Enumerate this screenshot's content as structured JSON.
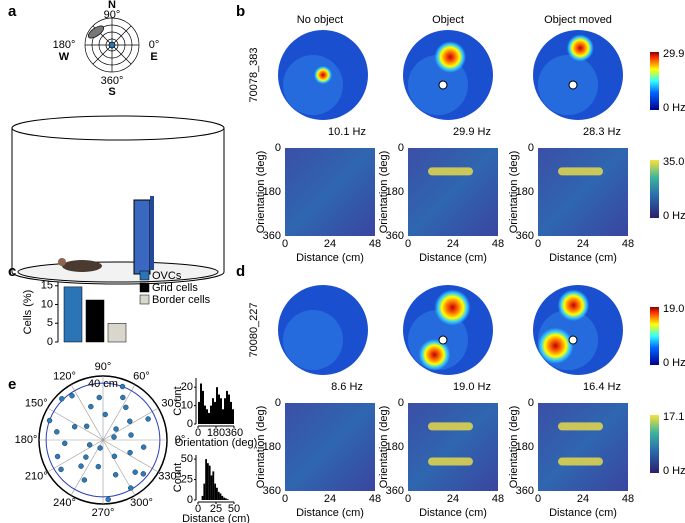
{
  "panel_labels": [
    "a",
    "b",
    "c",
    "d",
    "e"
  ],
  "compass": {
    "north": "N",
    "south": "S",
    "west": "W",
    "east": "E",
    "deg_top": "90°",
    "deg_left": "180°",
    "deg_right": "0°",
    "deg_bottom": "360°"
  },
  "conditions": [
    "No object",
    "Object",
    "Object moved"
  ],
  "rate_maps": [
    {
      "cell": "70078_383",
      "peak_rates": [
        "10.1 Hz",
        "29.9 Hz",
        "28.3 Hz"
      ],
      "colorbar": [
        "29.9",
        "0 Hz"
      ],
      "ovc_colorbar": [
        "35.0",
        "0 Hz"
      ],
      "y_label": "Orientation (deg)",
      "x_label": "Distance (cm)",
      "yticks": [
        "0",
        "180",
        "360"
      ],
      "xticks": [
        "0",
        "24",
        "48"
      ]
    },
    {
      "cell": "70080_227",
      "peak_rates": [
        "8.6 Hz",
        "19.0 Hz",
        "16.4 Hz"
      ],
      "colorbar": [
        "19.0",
        "0 Hz"
      ],
      "ovc_colorbar": [
        "17.1",
        "0 Hz"
      ],
      "y_label": "Orientation (deg)",
      "x_label": "Distance (cm)",
      "yticks": [
        "0",
        "180",
        "360"
      ],
      "xticks": [
        "0",
        "24",
        "48"
      ]
    }
  ],
  "chart_data": [
    {
      "type": "bar",
      "categories": [
        "OVCs",
        "Grid cells",
        "Border cells"
      ],
      "values": [
        14.7,
        11.2,
        5.0
      ],
      "colors": [
        "#2b74b5",
        "#000000",
        "#d9d6cc"
      ],
      "ylabel": "Cells (%)",
      "ylim": [
        0,
        16
      ],
      "yticks": [
        0,
        5,
        10,
        15
      ]
    },
    {
      "type": "polar_scatter",
      "theta": [
        10,
        25,
        40,
        55,
        70,
        85,
        95,
        110,
        125,
        140,
        155,
        170,
        185,
        200,
        215,
        230,
        245,
        260,
        275,
        290,
        305,
        320,
        335,
        350,
        15,
        65,
        135,
        200,
        250,
        300,
        35,
        160,
        225,
        315
      ],
      "r": [
        20,
        35,
        12,
        28,
        40,
        18,
        30,
        25,
        38,
        15,
        22,
        33,
        27,
        10,
        36,
        24,
        31,
        19,
        42,
        26,
        14,
        37,
        21,
        29,
        8,
        33,
        41,
        34,
        6,
        39,
        23,
        40,
        17,
        32
      ],
      "color": "#2b7bba",
      "rlim": [
        0,
        45
      ],
      "rticks": [
        {
          "value": 40,
          "label": "40 cm"
        }
      ],
      "angle_ticks": [
        {
          "value": 90,
          "label": "90°"
        },
        {
          "value": 60,
          "label": "60°"
        },
        {
          "value": 30,
          "label": "30°"
        },
        {
          "value": 0,
          "label": "0°"
        },
        {
          "value": 330,
          "label": "330°"
        },
        {
          "value": 300,
          "label": "300°"
        },
        {
          "value": 270,
          "label": "270°"
        },
        {
          "value": 240,
          "label": "240°"
        },
        {
          "value": 210,
          "label": "210°"
        },
        {
          "value": 180,
          "label": "180°"
        },
        {
          "value": 150,
          "label": "150°"
        },
        {
          "value": 120,
          "label": "120°"
        }
      ]
    },
    {
      "type": "histogram",
      "bins": [
        0,
        20,
        40,
        60,
        80,
        100,
        120,
        140,
        160,
        180,
        200,
        220,
        240,
        260,
        280,
        300,
        320,
        340,
        360
      ],
      "counts": [
        12,
        22,
        18,
        10,
        8,
        6,
        10,
        14,
        12,
        20,
        16,
        14,
        8,
        14,
        18,
        16,
        12,
        8
      ],
      "color": "#000000",
      "xlim": [
        0,
        360
      ],
      "ylim": [
        0,
        25
      ],
      "xticks": [
        0,
        180,
        360
      ],
      "yticks": [
        0,
        10,
        20
      ],
      "xlabel": "Orientation (deg)",
      "ylabel": "Count"
    },
    {
      "type": "histogram",
      "bins": [
        5,
        7.5,
        10,
        12.5,
        15,
        17.5,
        20,
        22.5,
        25,
        27.5,
        30,
        32.5,
        35,
        37.5,
        40,
        42.5
      ],
      "counts": [
        5,
        20,
        50,
        45,
        42,
        30,
        35,
        20,
        15,
        10,
        8,
        5,
        3,
        2,
        1
      ],
      "color": "#000000",
      "xlim": [
        0,
        50
      ],
      "ylim": [
        0,
        55
      ],
      "xticks": [
        0,
        25,
        50
      ],
      "yticks": [
        0,
        25,
        50
      ],
      "xlabel": "Distance (cm)",
      "ylabel": "Count"
    }
  ]
}
